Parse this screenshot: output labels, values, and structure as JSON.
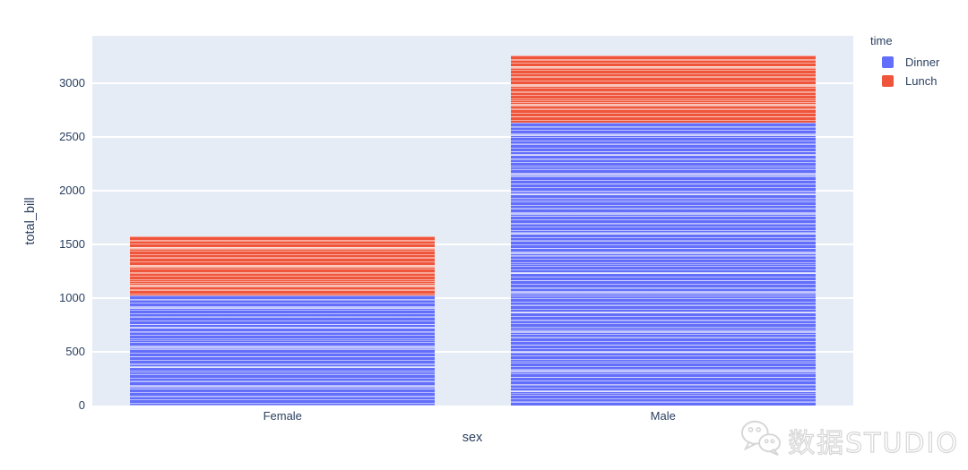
{
  "chart_data": {
    "type": "bar",
    "stacked": true,
    "title": "",
    "xlabel": "sex",
    "ylabel": "total_bill",
    "categories": [
      "Female",
      "Male"
    ],
    "series": [
      {
        "name": "Dinner",
        "color": "#636EFA",
        "values": [
          1024,
          2637
        ]
      },
      {
        "name": "Lunch",
        "color": "#EF553B",
        "values": [
          547,
          620
        ]
      }
    ],
    "bar_totals": [
      1571,
      3257
    ],
    "yticks": [
      0,
      500,
      1000,
      1500,
      2000,
      2500,
      3000
    ],
    "ylim": [
      0,
      3442
    ],
    "legend_title": "time",
    "legend_position": "outside-top-right",
    "grid": "horizontal-white-gridlines",
    "plot_background": "#E5ECF6",
    "paper_background": "#FFFFFF",
    "text_color": "#2A3F5F",
    "note": "each bar is built from many thin per-record segments, giving a striped texture"
  },
  "watermark": {
    "text": "数据STUDIO",
    "icon": "wechat-logo"
  }
}
